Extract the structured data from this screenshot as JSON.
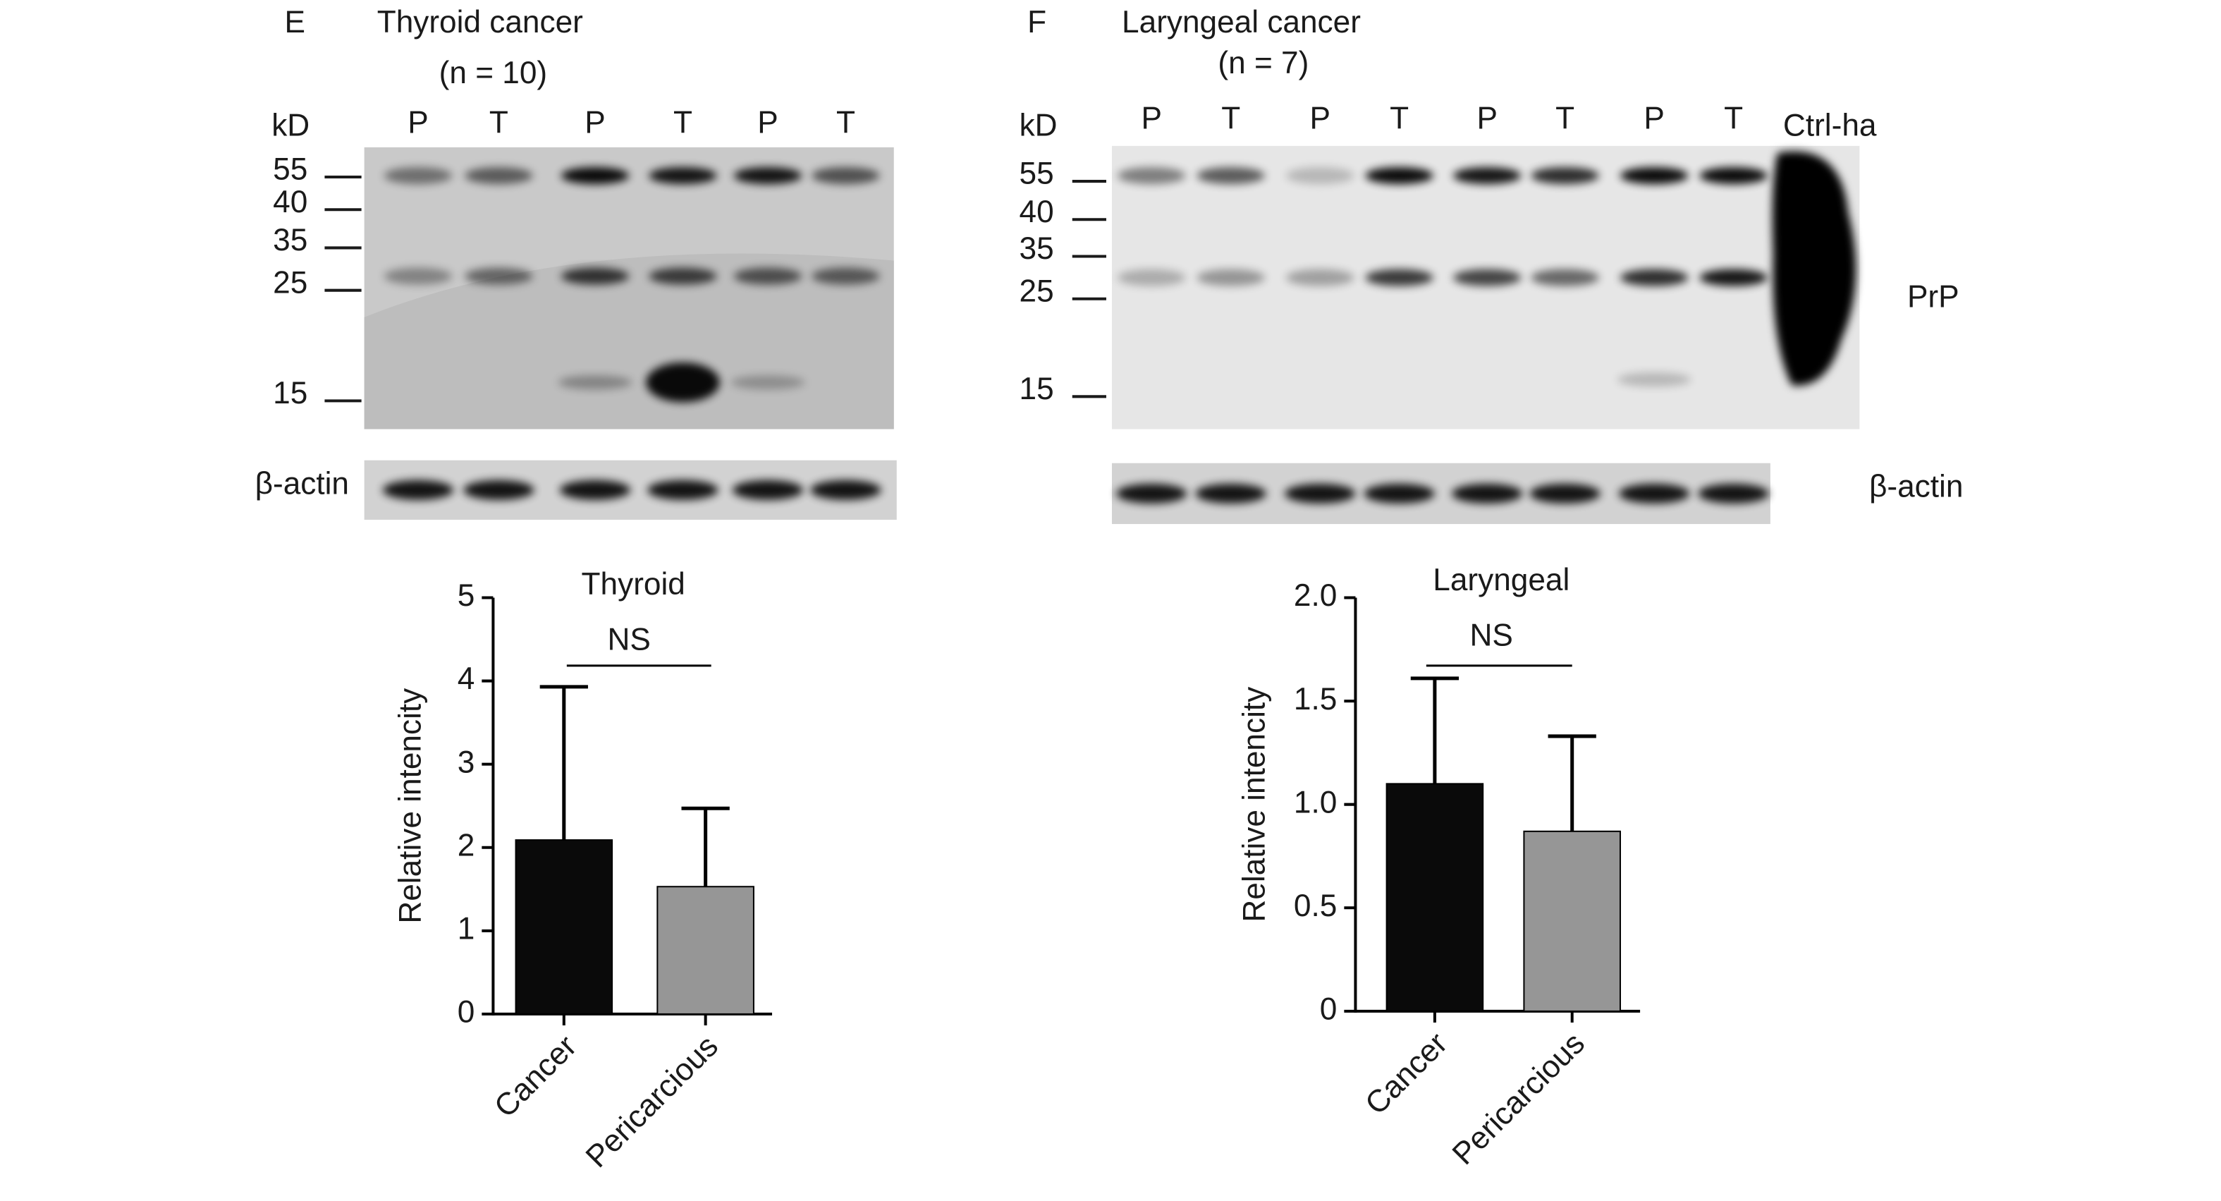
{
  "chart_data": [
    {
      "type": "bar",
      "title": "Thyroid",
      "ylabel": "Relative intencity",
      "categories": [
        "Cancer",
        "Pericarcious"
      ],
      "values": [
        2.09,
        1.53
      ],
      "errors": [
        1.84,
        0.94
      ],
      "colors": [
        "#0a0a0a",
        "#969696"
      ],
      "annotation": "NS",
      "ylim": [
        0,
        5
      ],
      "yticks": [
        0,
        1,
        2,
        3,
        4,
        5
      ]
    },
    {
      "type": "bar",
      "title": "Laryngeal",
      "ylabel": "Relative intencity",
      "categories": [
        "Cancer",
        "Pericarcious"
      ],
      "values": [
        1.1,
        0.87
      ],
      "errors": [
        0.51,
        0.46
      ],
      "colors": [
        "#0a0a0a",
        "#969696"
      ],
      "annotation": "NS",
      "ylim": [
        0,
        2
      ],
      "yticks": [
        0,
        {
          "value": 0.5,
          "label": "0.5"
        },
        {
          "value": 1,
          "label": "1.0"
        },
        {
          "value": 1.5,
          "label": "1.5"
        },
        {
          "value": 2,
          "label": "2.0"
        }
      ]
    }
  ],
  "blots": [
    {
      "panel": "E",
      "title": "Thyroid cancer",
      "n_label": "(n = 10)",
      "kd_label": "kD",
      "markers": [
        "55",
        "40",
        "35",
        "25",
        "15"
      ],
      "lanes": [
        "P",
        "T",
        "P",
        "T",
        "P",
        "T"
      ],
      "loading_label": "β-actin"
    },
    {
      "panel": "F",
      "title": "Laryngeal cancer",
      "n_label": "(n = 7)",
      "kd_label": "kD",
      "markers": [
        "55",
        "40",
        "35",
        "25",
        "15"
      ],
      "lanes": [
        "P",
        "T",
        "P",
        "T",
        "P",
        "T",
        "P",
        "T"
      ],
      "control_label": "Ctrl-ha",
      "target_label": "PrP",
      "loading_label": "β-actin"
    }
  ]
}
